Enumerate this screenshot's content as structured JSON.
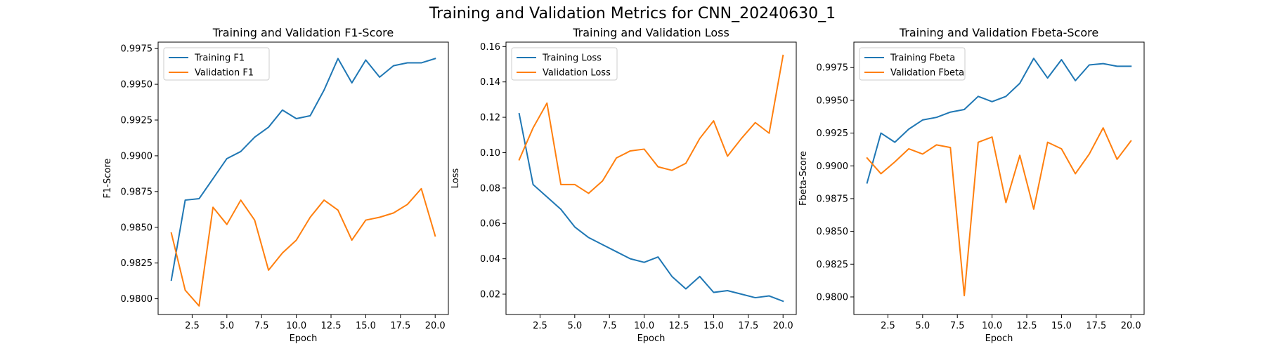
{
  "figure": {
    "title": "Training and Validation Metrics for CNN_20240630_1"
  },
  "colors": {
    "training": "#1f77b4",
    "validation": "#ff7f0e"
  },
  "chart_data": [
    {
      "type": "line",
      "title": "Training and Validation F1-Score",
      "xlabel": "Epoch",
      "ylabel": "F1-Score",
      "xlim": [
        0.05,
        20.95
      ],
      "ylim": [
        0.9789,
        0.99795
      ],
      "xticks": [
        "2.5",
        "5.0",
        "7.5",
        "10.0",
        "12.5",
        "15.0",
        "17.5",
        "20.0"
      ],
      "yticks": [
        "0.9800",
        "0.9825",
        "0.9850",
        "0.9875",
        "0.9900",
        "0.9925",
        "0.9950",
        "0.9975"
      ],
      "grid": false,
      "legend": "upper left",
      "x": [
        1,
        2,
        3,
        4,
        5,
        6,
        7,
        8,
        9,
        10,
        11,
        12,
        13,
        14,
        15,
        16,
        17,
        18,
        19,
        20
      ],
      "series": [
        {
          "name": "Training F1",
          "values": [
            0.9813,
            0.9869,
            0.987,
            0.9884,
            0.9898,
            0.9903,
            0.9913,
            0.992,
            0.9932,
            0.9926,
            0.9928,
            0.9946,
            0.9968,
            0.9951,
            0.9967,
            0.9955,
            0.9963,
            0.9965,
            0.9965,
            0.9968
          ]
        },
        {
          "name": "Validation F1",
          "values": [
            0.9846,
            0.9806,
            0.9795,
            0.9864,
            0.9852,
            0.9869,
            0.9855,
            0.982,
            0.9832,
            0.9841,
            0.9857,
            0.9869,
            0.9862,
            0.9841,
            0.9855,
            0.9857,
            0.986,
            0.9866,
            0.9877,
            0.9844
          ]
        }
      ]
    },
    {
      "type": "line",
      "title": "Training and Validation Loss",
      "xlabel": "Epoch",
      "ylabel": "Loss",
      "xlim": [
        0.05,
        20.95
      ],
      "ylim": [
        0.0085,
        0.1625
      ],
      "xticks": [
        "2.5",
        "5.0",
        "7.5",
        "10.0",
        "12.5",
        "15.0",
        "17.5",
        "20.0"
      ],
      "yticks": [
        "0.02",
        "0.04",
        "0.06",
        "0.08",
        "0.10",
        "0.12",
        "0.14",
        "0.16"
      ],
      "grid": false,
      "legend": "upper left",
      "x": [
        1,
        2,
        3,
        4,
        5,
        6,
        7,
        8,
        9,
        10,
        11,
        12,
        13,
        14,
        15,
        16,
        17,
        18,
        19,
        20
      ],
      "series": [
        {
          "name": "Training Loss",
          "values": [
            0.122,
            0.082,
            0.075,
            0.068,
            0.058,
            0.052,
            0.048,
            0.044,
            0.04,
            0.038,
            0.041,
            0.03,
            0.023,
            0.03,
            0.021,
            0.022,
            0.02,
            0.018,
            0.019,
            0.016
          ]
        },
        {
          "name": "Validation Loss",
          "values": [
            0.096,
            0.114,
            0.128,
            0.082,
            0.082,
            0.077,
            0.084,
            0.097,
            0.101,
            0.102,
            0.092,
            0.09,
            0.094,
            0.108,
            0.118,
            0.098,
            0.108,
            0.117,
            0.111,
            0.155
          ]
        }
      ]
    },
    {
      "type": "line",
      "title": "Training and Validation Fbeta-Score",
      "xlabel": "Epoch",
      "ylabel": "Fbeta-Score",
      "xlim": [
        0.05,
        20.95
      ],
      "ylim": [
        0.97866,
        0.99944
      ],
      "xticks": [
        "2.5",
        "5.0",
        "7.5",
        "10.0",
        "12.5",
        "15.0",
        "17.5",
        "20.0"
      ],
      "yticks": [
        "0.9800",
        "0.9825",
        "0.9850",
        "0.9875",
        "0.9900",
        "0.9925",
        "0.9950",
        "0.9975"
      ],
      "grid": false,
      "legend": "upper left",
      "x": [
        1,
        2,
        3,
        4,
        5,
        6,
        7,
        8,
        9,
        10,
        11,
        12,
        13,
        14,
        15,
        16,
        17,
        18,
        19,
        20
      ],
      "series": [
        {
          "name": "Training Fbeta",
          "values": [
            0.9887,
            0.9925,
            0.9918,
            0.9928,
            0.9935,
            0.9937,
            0.9941,
            0.9943,
            0.9953,
            0.9949,
            0.9953,
            0.9963,
            0.9982,
            0.9967,
            0.9981,
            0.9965,
            0.9977,
            0.9978,
            0.9976,
            0.9976
          ]
        },
        {
          "name": "Validation Fbeta",
          "values": [
            0.9906,
            0.9894,
            0.9903,
            0.9913,
            0.9909,
            0.9916,
            0.9914,
            0.9801,
            0.9918,
            0.9922,
            0.9872,
            0.9908,
            0.9867,
            0.9918,
            0.9913,
            0.9894,
            0.9909,
            0.9929,
            0.9905,
            0.9919
          ]
        }
      ]
    }
  ]
}
